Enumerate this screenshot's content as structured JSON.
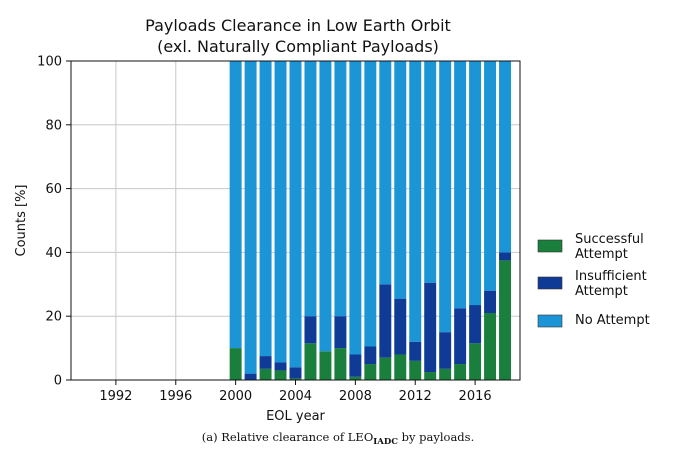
{
  "chart_data": {
    "type": "bar",
    "stacked": true,
    "title": "Payloads Clearance in Low Earth Orbit",
    "subtitle": "(exl. Naturally Compliant Payloads)",
    "xlabel": "EOL year",
    "ylabel": "Counts [%]",
    "xlim": [
      1989,
      2019
    ],
    "ylim": [
      0,
      100
    ],
    "x_ticks": [
      "1992",
      "1996",
      "2000",
      "2004",
      "2008",
      "2012",
      "2016"
    ],
    "y_ticks": [
      "0",
      "20",
      "40",
      "60",
      "80",
      "100"
    ],
    "grid": true,
    "legend_position": "right",
    "categories": [
      2000,
      2001,
      2002,
      2003,
      2004,
      2005,
      2006,
      2007,
      2008,
      2009,
      2010,
      2011,
      2012,
      2013,
      2014,
      2015,
      2016,
      2017,
      2018
    ],
    "series": [
      {
        "name": "Successful Attempt",
        "color": "#1a7f3c",
        "values": [
          10,
          0,
          3.5,
          3,
          0.5,
          11.5,
          9,
          10,
          1,
          5,
          7,
          8,
          6,
          2.5,
          3.5,
          5,
          11.5,
          21,
          37.5
        ]
      },
      {
        "name": "Insufficient Attempt",
        "color": "#0f3a96",
        "values": [
          0,
          2,
          4,
          2.5,
          3.5,
          8.5,
          0,
          10,
          7,
          5.5,
          23,
          17.5,
          6,
          28,
          11.5,
          17.5,
          12,
          7,
          2.5
        ]
      },
      {
        "name": "No Attempt",
        "color": "#1b95d6",
        "values": [
          90,
          98,
          92.5,
          94.5,
          96,
          80,
          91,
          80,
          92,
          89.5,
          70,
          74.5,
          88,
          69.5,
          85,
          77.5,
          76.5,
          72,
          60
        ]
      }
    ],
    "legend": [
      "Successful\nAttempt",
      "Insufficient\nAttempt",
      "No Attempt"
    ],
    "caption_prefix": "(a) Relative clearance of LEO",
    "caption_sub": "IADC",
    "caption_suffix": " by payloads."
  }
}
